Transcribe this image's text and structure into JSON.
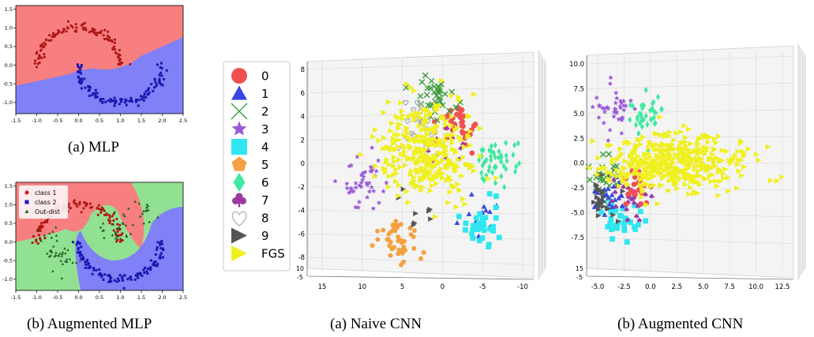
{
  "captions": {
    "mlp": "(a)  MLP",
    "aug_mlp": "(b)  Augmented MLP",
    "naive_cnn": "(a)  Naive CNN",
    "aug_cnn": "(b)  Augmented CNN"
  },
  "colors": {
    "region_class1": "#f77f7f",
    "region_class2": "#8080f7",
    "region_out": "#92e092",
    "c0": "#f05050",
    "c1": "#3a46e0",
    "c2": "#3a9a3a",
    "c3": "#9a5ad8",
    "c4": "#30e6f0",
    "c5": "#f5a040",
    "c6": "#40e8a0",
    "c7": "#9a3aa0",
    "c8": "#b0b0b0",
    "c9": "#555555",
    "fgs": "#f0f020"
  },
  "chart_data": [
    {
      "type": "scatter",
      "name": "MLP",
      "xlim": [
        -1.5,
        2.5
      ],
      "ylim": [
        -1.3,
        1.6
      ],
      "x_ticks": [
        "-1.5",
        "-1.0",
        "-0.5",
        "0.0",
        "0.5",
        "1.0",
        "1.5",
        "2.0",
        "2.5"
      ],
      "y_ticks": [
        "-1.0",
        "-0.5",
        "0.0",
        "0.5",
        "1.0",
        "1.5"
      ],
      "series": [
        {
          "marker": "circle",
          "color": "#b01818",
          "shape": "upper moon, center (0,0) radius 1"
        },
        {
          "marker": "square",
          "color": "#1818b0",
          "shape": "lower moon, center (1,0.5) radius 1"
        }
      ]
    },
    {
      "type": "scatter",
      "name": "Augmented MLP",
      "xlim": [
        -1.5,
        2.5
      ],
      "ylim": [
        -1.3,
        1.6
      ],
      "x_ticks": [
        "-1.5",
        "-1.0",
        "-0.5",
        "0.0",
        "0.5",
        "1.0",
        "1.5",
        "2.0",
        "2.5"
      ],
      "y_ticks": [
        "-1.0",
        "-0.5",
        "0.0",
        "0.5",
        "1.0",
        "1.5"
      ],
      "legend": [
        "class 1",
        "class 2",
        "Out-dist"
      ],
      "legend_position": "top-left",
      "series": [
        {
          "name": "class 1",
          "marker": "circle",
          "color": "#b01818"
        },
        {
          "name": "class 2",
          "marker": "square",
          "color": "#1818b0"
        },
        {
          "name": "Out-dist",
          "marker": "triangle",
          "color": "#1a6a1a"
        }
      ]
    },
    {
      "type": "scatter",
      "name": "Naive CNN",
      "projection": "3d",
      "x_ticks": [
        "15",
        "10",
        "5",
        "0",
        "-5",
        "-10"
      ],
      "y_ticks": [
        "8",
        "6",
        "4",
        "2",
        "0",
        "-2",
        "-4",
        "-6",
        "-8"
      ],
      "z_ticks": [
        "-5",
        "10"
      ],
      "legend": [
        "0",
        "1",
        "2",
        "3",
        "4",
        "5",
        "6",
        "7",
        "8",
        "9",
        "FGS"
      ],
      "clusters": [
        {
          "label": "0",
          "center": [
            -2.0,
            3.5
          ],
          "count": 40
        },
        {
          "label": "1",
          "center": [
            -4.0,
            -4.2
          ],
          "count": 12
        },
        {
          "label": "2",
          "center": [
            1.0,
            5.5
          ],
          "count": 35
        },
        {
          "label": "3",
          "center": [
            10.0,
            -1.5
          ],
          "count": 45
        },
        {
          "label": "4",
          "center": [
            -5.5,
            -5.0
          ],
          "count": 30
        },
        {
          "label": "5",
          "center": [
            5.5,
            -6.5
          ],
          "count": 40
        },
        {
          "label": "6",
          "center": [
            -7.0,
            0.0
          ],
          "count": 45
        },
        {
          "label": "7",
          "center": [
            -1.0,
            1.0
          ],
          "count": 10
        },
        {
          "label": "8",
          "center": [
            3.5,
            4.0
          ],
          "count": 20
        },
        {
          "label": "9",
          "center": [
            2.5,
            -4.0
          ],
          "count": 8
        },
        {
          "label": "FGS",
          "center": [
            2.0,
            1.0
          ],
          "count": 320
        }
      ]
    },
    {
      "type": "scatter",
      "name": "Augmented CNN",
      "projection": "3d",
      "x_ticks": [
        "-5.0",
        "-2.5",
        "0.0",
        "2.5",
        "5.0",
        "7.5",
        "10.0",
        "12.5"
      ],
      "y_ticks": [
        "10.0",
        "7.5",
        "5.0",
        "2.5",
        "0.0",
        "-2.5",
        "-5.0",
        "-7.5"
      ],
      "z_ticks": [
        "-5",
        "15"
      ],
      "clusters": [
        {
          "label": "3",
          "center": [
            -3.5,
            5.5
          ],
          "count": 40
        },
        {
          "label": "6",
          "center": [
            -0.5,
            4.8
          ],
          "count": 35
        },
        {
          "label": "4",
          "center": [
            -2.8,
            -5.5
          ],
          "count": 35
        },
        {
          "label": "2",
          "center": [
            -4.2,
            -1.5
          ],
          "count": 25
        },
        {
          "label": "1",
          "center": [
            -4.0,
            -3.0
          ],
          "count": 25
        },
        {
          "label": "7",
          "center": [
            -2.0,
            -3.5
          ],
          "count": 25
        },
        {
          "label": "0",
          "center": [
            -1.5,
            -2.0
          ],
          "count": 20
        },
        {
          "label": "9",
          "center": [
            -4.5,
            -3.5
          ],
          "count": 25
        },
        {
          "label": "FGS",
          "center": [
            2.5,
            0.0
          ],
          "count": 420
        }
      ]
    }
  ]
}
